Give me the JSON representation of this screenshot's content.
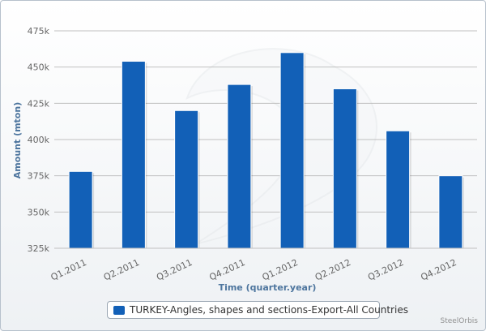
{
  "chart_data": {
    "type": "bar",
    "categories": [
      "Q1.2011",
      "Q2.2011",
      "Q3.2011",
      "Q4.2011",
      "Q1.2012",
      "Q2.2012",
      "Q3.2012",
      "Q4.2012"
    ],
    "series": [
      {
        "name": "TURKEY-Angles, shapes and sections-Export-All Countries",
        "values": [
          378000,
          454000,
          420000,
          438000,
          460000,
          435000,
          406000,
          375000
        ]
      }
    ],
    "xlabel": "Time (quarter.year)",
    "ylabel": "Amount (mton)",
    "ylim": [
      325000,
      475000
    ],
    "yticks": [
      325000,
      350000,
      375000,
      400000,
      425000,
      450000,
      475000
    ],
    "ytick_labels": [
      "325k",
      "350k",
      "375k",
      "400k",
      "425k",
      "450k",
      "475k"
    ],
    "grid": true,
    "legend_position": "bottom-center",
    "colors": {
      "bar": "#1260b7",
      "grid": "#c0c0c0",
      "axis_title": "#4d759e"
    }
  },
  "credit": "SteelOrbis"
}
